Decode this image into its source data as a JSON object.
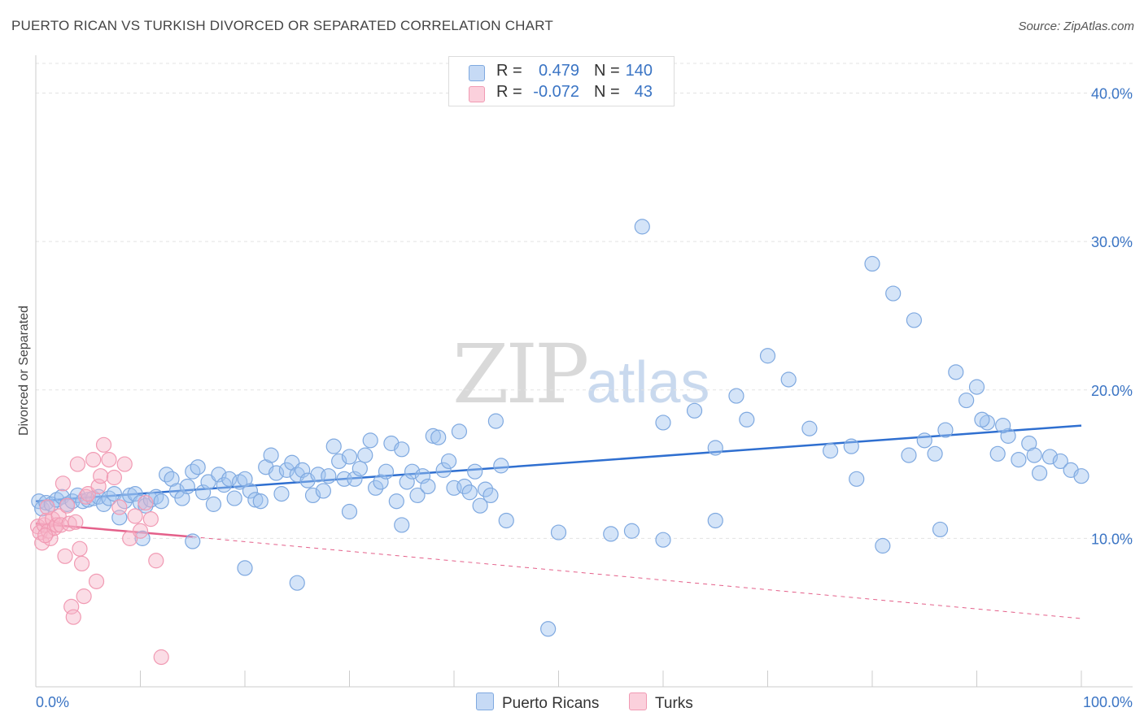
{
  "title": "PUERTO RICAN VS TURKISH DIVORCED OR SEPARATED CORRELATION CHART",
  "source": "Source: ZipAtlas.com",
  "watermark": {
    "zip": "ZIP",
    "atlas": "atlas"
  },
  "legend": {
    "rows": [
      {
        "r_label": "R =",
        "r_value": "0.479",
        "n_label": "N =",
        "n_value": "140",
        "color": "#a9c7f0"
      },
      {
        "r_label": "R =",
        "r_value": "-0.072",
        "n_label": "N =",
        "n_value": "43",
        "color": "#f6b8c9"
      }
    ]
  },
  "bottom_legend": {
    "puerto_ricans": "Puerto Ricans",
    "turks": "Turks"
  },
  "chart_data": {
    "type": "scatter",
    "ylabel": "Divorced or Separated",
    "xlim": [
      0,
      100
    ],
    "ylim": [
      0,
      42
    ],
    "x_tick_labels": [
      {
        "x": 0,
        "label": "0.0%"
      },
      {
        "x": 100,
        "label": "100.0%"
      }
    ],
    "y_tick_labels": [
      {
        "y": 10,
        "label": "10.0%"
      },
      {
        "y": 20,
        "label": "20.0%"
      },
      {
        "y": 30,
        "label": "30.0%"
      },
      {
        "y": 40,
        "label": "40.0%"
      }
    ],
    "grid": true,
    "series": [
      {
        "name": "Puerto Ricans",
        "color": "#7fa9e0",
        "trend": {
          "x": [
            0,
            100
          ],
          "y": [
            12.5,
            17.6
          ],
          "color": "#2f6fd0"
        },
        "points": [
          [
            0.3,
            12.5
          ],
          [
            0.6,
            12.0
          ],
          [
            1.0,
            12.4
          ],
          [
            1.5,
            12.3
          ],
          [
            2.0,
            12.6
          ],
          [
            2.5,
            12.8
          ],
          [
            3.0,
            12.3
          ],
          [
            3.5,
            12.5
          ],
          [
            4.0,
            12.9
          ],
          [
            4.5,
            12.5
          ],
          [
            5.0,
            12.6
          ],
          [
            5.5,
            12.7
          ],
          [
            6.0,
            12.8
          ],
          [
            6.5,
            12.3
          ],
          [
            7.0,
            12.7
          ],
          [
            7.5,
            13.0
          ],
          [
            8.0,
            11.4
          ],
          [
            8.5,
            12.5
          ],
          [
            9.0,
            12.9
          ],
          [
            9.5,
            13.0
          ],
          [
            10.0,
            12.4
          ],
          [
            10.5,
            12.2
          ],
          [
            11.0,
            12.6
          ],
          [
            11.5,
            12.8
          ],
          [
            12.0,
            12.5
          ],
          [
            12.5,
            14.3
          ],
          [
            13.0,
            14.0
          ],
          [
            13.5,
            13.2
          ],
          [
            14.0,
            12.7
          ],
          [
            14.5,
            13.5
          ],
          [
            15.0,
            14.5
          ],
          [
            15.5,
            14.8
          ],
          [
            16.0,
            13.1
          ],
          [
            16.5,
            13.8
          ],
          [
            17.0,
            12.3
          ],
          [
            17.5,
            14.3
          ],
          [
            18.0,
            13.6
          ],
          [
            18.5,
            14.0
          ],
          [
            19.0,
            12.7
          ],
          [
            19.5,
            13.8
          ],
          [
            20.0,
            14.0
          ],
          [
            20.5,
            13.2
          ],
          [
            21.0,
            12.6
          ],
          [
            21.5,
            12.5
          ],
          [
            22.0,
            14.8
          ],
          [
            22.5,
            15.6
          ],
          [
            23.0,
            14.4
          ],
          [
            23.5,
            13.0
          ],
          [
            24.0,
            14.6
          ],
          [
            24.5,
            15.1
          ],
          [
            25.0,
            14.3
          ],
          [
            25.5,
            14.6
          ],
          [
            26.0,
            13.9
          ],
          [
            26.5,
            12.9
          ],
          [
            27.0,
            14.3
          ],
          [
            27.5,
            13.2
          ],
          [
            28.0,
            14.2
          ],
          [
            28.5,
            16.2
          ],
          [
            29.0,
            15.2
          ],
          [
            29.5,
            14.0
          ],
          [
            30.0,
            15.5
          ],
          [
            30.5,
            14.0
          ],
          [
            31.0,
            14.7
          ],
          [
            31.5,
            15.6
          ],
          [
            32.0,
            16.6
          ],
          [
            32.5,
            13.4
          ],
          [
            33.0,
            13.8
          ],
          [
            33.5,
            14.5
          ],
          [
            34.0,
            16.4
          ],
          [
            34.5,
            12.5
          ],
          [
            35.0,
            16.0
          ],
          [
            35.5,
            13.8
          ],
          [
            36.0,
            14.5
          ],
          [
            36.5,
            12.9
          ],
          [
            37.0,
            14.2
          ],
          [
            37.5,
            13.5
          ],
          [
            38.0,
            16.9
          ],
          [
            38.5,
            16.8
          ],
          [
            39.0,
            14.6
          ],
          [
            39.5,
            15.2
          ],
          [
            40.0,
            13.4
          ],
          [
            40.5,
            17.2
          ],
          [
            41.0,
            13.5
          ],
          [
            41.5,
            13.1
          ],
          [
            42.0,
            14.5
          ],
          [
            42.5,
            12.2
          ],
          [
            43.0,
            13.3
          ],
          [
            43.5,
            12.9
          ],
          [
            44.0,
            17.9
          ],
          [
            44.5,
            14.9
          ],
          [
            10.2,
            10.0
          ],
          [
            15.0,
            9.8
          ],
          [
            20.0,
            8.0
          ],
          [
            25.0,
            7.0
          ],
          [
            30.0,
            11.8
          ],
          [
            35.0,
            10.9
          ],
          [
            45.0,
            11.2
          ],
          [
            50.0,
            10.4
          ],
          [
            55.0,
            10.3
          ],
          [
            60.0,
            9.9
          ],
          [
            49.0,
            3.9
          ],
          [
            58.0,
            31.0
          ],
          [
            60.0,
            17.8
          ],
          [
            63.0,
            18.6
          ],
          [
            65.0,
            16.1
          ],
          [
            67.0,
            19.6
          ],
          [
            68.0,
            18.0
          ],
          [
            70.0,
            22.3
          ],
          [
            72.0,
            20.7
          ],
          [
            74.0,
            17.4
          ],
          [
            76.0,
            15.9
          ],
          [
            78.0,
            16.2
          ],
          [
            80.0,
            28.5
          ],
          [
            82.0,
            26.5
          ],
          [
            84.0,
            24.7
          ],
          [
            85.0,
            16.6
          ],
          [
            86.0,
            15.7
          ],
          [
            88.0,
            21.2
          ],
          [
            89.0,
            19.3
          ],
          [
            90.0,
            20.2
          ],
          [
            91.0,
            17.8
          ],
          [
            92.0,
            15.7
          ],
          [
            93.0,
            16.9
          ],
          [
            94.0,
            15.3
          ],
          [
            95.0,
            16.4
          ],
          [
            96.0,
            14.4
          ],
          [
            97.0,
            15.5
          ],
          [
            98.0,
            15.2
          ],
          [
            99.0,
            14.6
          ],
          [
            100.0,
            14.2
          ],
          [
            81.0,
            9.5
          ],
          [
            86.5,
            10.6
          ],
          [
            78.5,
            14.0
          ],
          [
            83.5,
            15.6
          ],
          [
            87.0,
            17.3
          ],
          [
            90.5,
            18.0
          ],
          [
            92.5,
            17.6
          ],
          [
            95.5,
            15.6
          ],
          [
            57.0,
            10.5
          ],
          [
            65.0,
            11.2
          ]
        ]
      },
      {
        "name": "Turks",
        "color": "#f19ab3",
        "trend": {
          "x": [
            0,
            15
          ],
          "y": [
            11.0,
            10.1
          ],
          "dashed_to": [
            100,
            4.6
          ],
          "color": "#e4608a"
        },
        "points": [
          [
            0.2,
            10.8
          ],
          [
            0.4,
            10.4
          ],
          [
            0.6,
            9.7
          ],
          [
            0.8,
            10.9
          ],
          [
            1.0,
            11.2
          ],
          [
            1.2,
            10.5
          ],
          [
            1.4,
            10.0
          ],
          [
            1.6,
            11.3
          ],
          [
            1.8,
            10.7
          ],
          [
            2.0,
            10.9
          ],
          [
            2.2,
            11.5
          ],
          [
            2.4,
            10.9
          ],
          [
            2.6,
            13.7
          ],
          [
            2.8,
            8.8
          ],
          [
            3.0,
            12.2
          ],
          [
            3.2,
            11.0
          ],
          [
            3.4,
            5.4
          ],
          [
            3.6,
            4.7
          ],
          [
            3.8,
            11.1
          ],
          [
            4.0,
            15.0
          ],
          [
            4.2,
            9.3
          ],
          [
            4.4,
            8.3
          ],
          [
            4.6,
            6.1
          ],
          [
            4.8,
            12.8
          ],
          [
            5.0,
            13.0
          ],
          [
            5.5,
            15.3
          ],
          [
            5.8,
            7.1
          ],
          [
            6.0,
            13.5
          ],
          [
            6.2,
            14.2
          ],
          [
            6.5,
            16.3
          ],
          [
            7.0,
            15.3
          ],
          [
            7.5,
            14.1
          ],
          [
            8.0,
            12.1
          ],
          [
            8.5,
            15.0
          ],
          [
            9.0,
            10.0
          ],
          [
            9.5,
            11.5
          ],
          [
            10.0,
            10.5
          ],
          [
            10.5,
            12.4
          ],
          [
            11.0,
            11.3
          ],
          [
            11.5,
            8.5
          ],
          [
            12.0,
            2.0
          ],
          [
            1.1,
            12.1
          ],
          [
            0.9,
            10.2
          ]
        ]
      }
    ]
  }
}
